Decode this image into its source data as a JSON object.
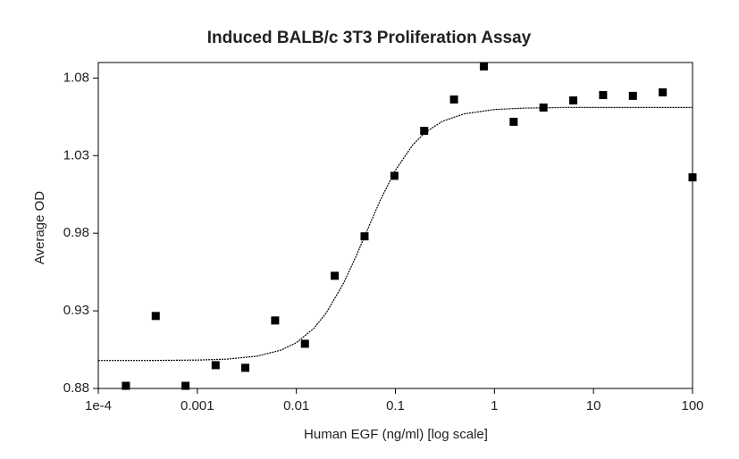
{
  "chart_data": {
    "type": "scatter",
    "title": "Induced BALB/c 3T3 Proliferation Assay",
    "x_label": "Human EGF (ng/ml) [log scale]",
    "y_label": "Average OD",
    "xscale": "log",
    "xlim": [
      0.0001,
      100
    ],
    "ylim": [
      0.88,
      1.09
    ],
    "xticks": [
      {
        "value": 0.0001,
        "label": "1e-4"
      },
      0.001,
      0.01,
      0.1,
      1,
      10,
      100
    ],
    "yticks": [
      0.88,
      0.93,
      0.98,
      1.03,
      1.08
    ],
    "series": [
      {
        "type": "scatter",
        "color": "#000000",
        "x": [
          100,
          50,
          25,
          12.5,
          6.25,
          3.125,
          1.5625,
          0.78125,
          0.390625,
          0.1953,
          0.0977,
          0.0488,
          0.0244,
          0.0122,
          0.0061,
          0.00305,
          0.00153,
          0.00076,
          0.00038,
          0.00019
        ],
        "values": [
          1.016,
          1.0708,
          1.0685,
          1.069,
          1.0656,
          1.061,
          1.0518,
          1.0875,
          1.0662,
          1.046,
          1.017,
          0.978,
          0.9526,
          0.9088,
          0.9238,
          0.8933,
          0.895,
          0.8817,
          0.9267,
          0.8817
        ]
      },
      {
        "type": "line",
        "color": "#000000",
        "x": [
          0.0001,
          0.0003,
          0.001,
          0.002,
          0.004,
          0.007,
          0.01,
          0.015,
          0.02,
          0.03,
          0.04,
          0.05,
          0.07,
          0.1,
          0.15,
          0.2,
          0.3,
          0.5,
          1,
          2,
          5,
          10,
          100
        ],
        "values": [
          0.898,
          0.898,
          0.8983,
          0.8989,
          0.9008,
          0.9047,
          0.9095,
          0.9187,
          0.9286,
          0.9479,
          0.9651,
          0.9795,
          1.001,
          1.0206,
          1.037,
          1.045,
          1.0522,
          1.057,
          1.0597,
          1.0606,
          1.061,
          1.061,
          1.061
        ]
      }
    ]
  }
}
